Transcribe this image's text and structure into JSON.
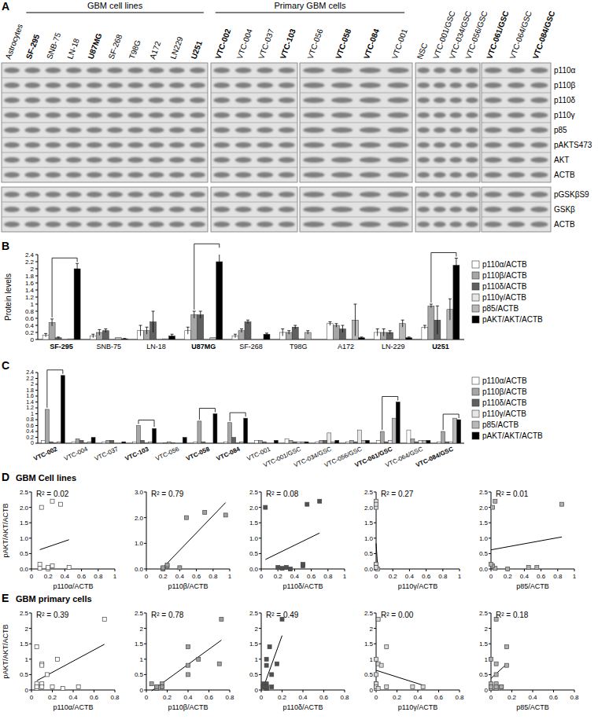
{
  "panels": [
    {
      "label": "A"
    },
    {
      "label": "B"
    },
    {
      "label": "C"
    },
    {
      "label": "D",
      "title": "GBM Cell lines"
    },
    {
      "label": "E",
      "title": "GBM primary cells"
    }
  ],
  "panel_a": {
    "headers": [
      {
        "text": "GBM cell lines",
        "from": [
          0,
          1
        ],
        "to": [
          0,
          9
        ]
      },
      {
        "text": "Primary GBM cells",
        "from": [
          1,
          0
        ],
        "to": [
          2,
          3
        ]
      }
    ],
    "blocks": [
      {
        "lanes": [
          {
            "label": "Astrocytes",
            "bold": false
          },
          {
            "label": "SF-295",
            "bold": true
          },
          {
            "label": "SNB-75",
            "bold": false
          },
          {
            "label": "LN-18",
            "bold": false
          },
          {
            "label": "U87MG",
            "bold": true
          },
          {
            "label": "SF-268",
            "bold": false
          },
          {
            "label": "T98G",
            "bold": false
          },
          {
            "label": "A172",
            "bold": false
          },
          {
            "label": "LN229",
            "bold": false
          },
          {
            "label": "U251",
            "bold": true
          }
        ]
      },
      {
        "lanes": [
          {
            "label": "VTC-002",
            "bold": true
          },
          {
            "label": "VTC-004",
            "bold": false
          },
          {
            "label": "VTC-037",
            "bold": false
          },
          {
            "label": "VTC-103",
            "bold": true
          }
        ]
      },
      {
        "lanes": [
          {
            "label": "VTC-056",
            "bold": false
          },
          {
            "label": "VTC-058",
            "bold": true
          },
          {
            "label": "VTC-084",
            "bold": true
          },
          {
            "label": "VTC-001",
            "bold": false
          }
        ]
      },
      {
        "lanes": [
          {
            "label": "NSC",
            "bold": false
          },
          {
            "label": "VTC-001/GSC",
            "bold": false
          },
          {
            "label": "VTC-034/GSC",
            "bold": false
          },
          {
            "label": "VTC-056/GSC",
            "bold": false
          }
        ]
      },
      {
        "lanes": [
          {
            "label": "VTC-061/GSC",
            "bold": true
          },
          {
            "label": "VTC-064/GSC",
            "bold": false
          },
          {
            "label": "VTC-084/GSC",
            "bold": true
          }
        ]
      }
    ],
    "rows_top": [
      "p110α",
      "p110β",
      "p110δ",
      "p110γ",
      "p85",
      "pAKTS473",
      "AKT",
      "ACTB"
    ],
    "rows_bottom": [
      "pGSKβS9",
      "GSKβ",
      "ACTB"
    ]
  },
  "chart_data": [
    {
      "type": "bar",
      "y_label": "Protein levels",
      "categories": [
        "SF-295",
        "SNB-75",
        "LN-18",
        "U87MG",
        "SF-268",
        "T98G",
        "A172",
        "LN-229",
        "U251"
      ],
      "ylim": [
        0,
        2.4
      ],
      "yticks": [
        0,
        0.2,
        0.4,
        0.6,
        0.8,
        1,
        1.2,
        1.4,
        1.6,
        1.8,
        2,
        2.2,
        2.4
      ],
      "grid": false,
      "legend": "right",
      "series": [
        {
          "name": "p110α/ACTB",
          "color": "#ffffff",
          "values": [
            0.12,
            0.1,
            0.25,
            0.25,
            0.1,
            0.2,
            0.45,
            0.2,
            0.35
          ],
          "errors": [
            0.05,
            0.05,
            0.15,
            0.1,
            0.05,
            0.1,
            0.05,
            0.1,
            0.05
          ]
        },
        {
          "name": "p110β/ACTB",
          "color": "#a6a6a6",
          "values": [
            0.48,
            0.2,
            0.25,
            0.7,
            0.25,
            0.2,
            0.4,
            0.2,
            0.95
          ],
          "errors": [
            0.1,
            0.08,
            0.1,
            0.1,
            0.05,
            0.05,
            0.05,
            0.1,
            0.05
          ]
        },
        {
          "name": "p110δ/ACTB",
          "color": "#606060",
          "values": [
            0.05,
            0.25,
            0.5,
            0.7,
            0.5,
            0.35,
            0.3,
            0.2,
            0.55
          ],
          "errors": [
            0.02,
            0.05,
            0.3,
            0.1,
            0.05,
            0.05,
            0.1,
            0.05,
            0.4
          ]
        },
        {
          "name": "p110γ/ACTB",
          "color": "#e6e6e6",
          "values": [
            0,
            0,
            0,
            0,
            0,
            0.02,
            0,
            0,
            0
          ],
          "errors": [
            0,
            0,
            0,
            0,
            0,
            0,
            0,
            0,
            0
          ]
        },
        {
          "name": "p85/ACTB",
          "color": "#b8b8b8",
          "values": [
            0.02,
            0.05,
            0.02,
            0.05,
            0,
            0.2,
            0.55,
            0.45,
            0.85
          ],
          "errors": [
            0,
            0,
            0,
            0,
            0,
            0.05,
            0.45,
            0.1,
            0.3
          ]
        },
        {
          "name": "pAKT/AKT/ACTB",
          "color": "#000000",
          "values": [
            2.0,
            0.02,
            0.1,
            2.2,
            0.15,
            0.0,
            0.05,
            0.05,
            2.1
          ],
          "errors": [
            0.15,
            0.01,
            0.05,
            0.35,
            0.03,
            0,
            0.02,
            0.02,
            0.2
          ]
        }
      ],
      "annotations": [
        {
          "shape": "bracket",
          "category": 0,
          "from": 1,
          "to": 5
        },
        {
          "shape": "bracket",
          "category": 3,
          "from": 1,
          "to": 5
        },
        {
          "shape": "bracket",
          "category": 8,
          "from": 1,
          "to": 5
        }
      ]
    },
    {
      "type": "bar",
      "categories": [
        "VTC-002",
        "VTC-004",
        "VTC-037",
        "VTC-103",
        "VTC-056",
        "VTC-058",
        "VTC-084",
        "VTC-001",
        "VTC-001/GSC",
        "VTC-034/GSC",
        "VTC-056/GSC",
        "VTC-061/GSC",
        "VTC-064/GSC",
        "VTC-084/GSC"
      ],
      "ylim": [
        0,
        2.4
      ],
      "yticks": [
        0,
        0.2,
        0.4,
        0.6,
        0.8,
        1,
        1.2,
        1.4,
        1.6,
        1.8,
        2,
        2.2,
        2.4
      ],
      "grid": false,
      "legend": "right",
      "series": [
        {
          "name": "p110α/ACTB",
          "color": "#ffffff",
          "values": [
            0.1,
            0.05,
            0.05,
            0.05,
            0.02,
            0.05,
            0.05,
            0.1,
            0.15,
            0.05,
            0.05,
            0.1,
            0.45,
            0.05
          ]
        },
        {
          "name": "p110β/ACTB",
          "color": "#a6a6a6",
          "values": [
            1.15,
            0.15,
            0.1,
            0.6,
            0.05,
            0.75,
            0.7,
            0.1,
            0.1,
            0.1,
            0.1,
            0.4,
            0.15,
            0.4
          ]
        },
        {
          "name": "p110δ/ACTB",
          "color": "#606060",
          "values": [
            0.05,
            0.1,
            0.1,
            0.1,
            0.02,
            0.05,
            0.2,
            0.05,
            0.05,
            0.1,
            0.05,
            0.05,
            0.05,
            0.05
          ]
        },
        {
          "name": "p110γ/ACTB",
          "color": "#e6e6e6",
          "values": [
            0.02,
            0.02,
            0,
            0.02,
            0,
            0,
            0.02,
            0,
            0.05,
            0.35,
            0.45,
            0.1,
            0.1,
            0.05
          ]
        },
        {
          "name": "p85/ACTB",
          "color": "#b8b8b8",
          "values": [
            0.05,
            0.05,
            0,
            0.05,
            0,
            0,
            0.05,
            0,
            0.05,
            0.05,
            0.1,
            0.85,
            0.1,
            0.85
          ]
        },
        {
          "name": "pAKT/AKT/ACTB",
          "color": "#000000",
          "values": [
            2.3,
            0.2,
            0.05,
            0.5,
            0.2,
            1.0,
            0.85,
            0.1,
            0.05,
            0.1,
            0.1,
            1.4,
            0.1,
            0.8
          ]
        }
      ],
      "annotations": [
        {
          "shape": "bracket",
          "category": 0,
          "from": 1,
          "to": 5
        },
        {
          "shape": "bracket",
          "category": 3,
          "from": 1,
          "to": 5
        },
        {
          "shape": "bracket",
          "category": 5,
          "from": 1,
          "to": 5
        },
        {
          "shape": "bracket",
          "category": 6,
          "from": 1,
          "to": 5
        },
        {
          "shape": "bracket",
          "category": 11,
          "from": 1,
          "to": 5
        },
        {
          "shape": "bracket",
          "category": 13,
          "from": 1,
          "to": 5
        }
      ]
    },
    {
      "type": "scatter",
      "y_label": "pAKT/AKT/ACTB",
      "x_label": "p110α/ACTB",
      "annotations": [
        "R² = 0.02"
      ],
      "color": "#ffffff",
      "marker": "square",
      "x": [
        0.12,
        0.1,
        0.25,
        0.25,
        0.1,
        0.2,
        0.45,
        0.2,
        0.35
      ],
      "values": [
        2.0,
        0.02,
        0.1,
        2.2,
        0.15,
        0.0,
        0.05,
        0.05,
        2.1
      ],
      "xlim": [
        0,
        1
      ],
      "xticks": [
        0,
        0.2,
        0.4,
        0.6,
        0.8,
        1
      ],
      "ylim": [
        0,
        2.5
      ],
      "yticks": [
        {
          "value": 0,
          "label": "0.0"
        },
        0.5,
        {
          "value": 1,
          "label": "1.0"
        },
        1.5,
        {
          "value": 2,
          "label": "2.0"
        },
        2.5
      ]
    },
    {
      "type": "scatter",
      "x_label": "p110β/ACTB",
      "annotations": [
        "R² = 0.79"
      ],
      "color": "#a0a0a0",
      "marker": "square",
      "x": [
        0.48,
        0.2,
        0.25,
        0.7,
        0.25,
        0.2,
        0.4,
        0.2,
        0.95
      ],
      "values": [
        2.0,
        0.02,
        0.1,
        2.2,
        0.15,
        0.0,
        0.05,
        0.05,
        2.1
      ],
      "xlim": [
        0,
        1
      ],
      "xticks": [
        0,
        0.2,
        0.4,
        0.6,
        0.8,
        1
      ],
      "ylim": [
        0,
        3
      ],
      "yticks": [
        {
          "value": 0,
          "label": "0.0"
        },
        {
          "value": 1,
          "label": "1.0"
        },
        {
          "value": 2,
          "label": "2.0"
        },
        {
          "value": 3,
          "label": "3.0"
        }
      ]
    },
    {
      "type": "scatter",
      "x_label": "p110δ/ACTB",
      "annotations": [
        "R² = 0.08"
      ],
      "color": "#505050",
      "marker": "square",
      "x": [
        0.05,
        0.25,
        0.5,
        0.7,
        0.5,
        0.35,
        0.3,
        0.2,
        0.55
      ],
      "values": [
        2.0,
        0.02,
        0.1,
        2.2,
        0.15,
        0.0,
        0.05,
        0.05,
        2.1
      ],
      "xlim": [
        0,
        1
      ],
      "xticks": [
        0,
        0.2,
        0.4,
        0.6,
        0.8,
        1
      ],
      "ylim": [
        0,
        2.5
      ],
      "yticks": [
        {
          "value": 0,
          "label": "0.0"
        },
        0.5,
        {
          "value": 1,
          "label": "1.0"
        },
        1.5,
        {
          "value": 2,
          "label": "2.0"
        },
        2.5
      ]
    },
    {
      "type": "scatter",
      "x_label": "p110γ/ACTB",
      "annotations": [
        "R² = 0.27"
      ],
      "color": "#d8d8d8",
      "marker": "square",
      "x": [
        0,
        0,
        0,
        0,
        0,
        0.02,
        0,
        0,
        0
      ],
      "values": [
        2.0,
        0.02,
        0.1,
        2.2,
        0.15,
        0.0,
        0.05,
        0.05,
        2.1
      ],
      "xlim": [
        0,
        1
      ],
      "xticks": [
        0,
        0.2,
        0.4,
        0.6,
        0.8,
        1
      ],
      "ylim": [
        0,
        2.5
      ],
      "yticks": [
        {
          "value": 0,
          "label": "0.0"
        },
        0.5,
        {
          "value": 1,
          "label": "1.0"
        },
        1.5,
        {
          "value": 2,
          "label": "2.0"
        },
        2.5
      ]
    },
    {
      "type": "scatter",
      "x_label": "p85/ACTB",
      "annotations": [
        "R² = 0.01"
      ],
      "color": "#b0b0b0",
      "marker": "square",
      "x": [
        0.02,
        0.05,
        0.02,
        0.05,
        0,
        0.2,
        0.55,
        0.45,
        0.85
      ],
      "values": [
        2.0,
        0.02,
        0.1,
        2.2,
        0.15,
        0.0,
        0.05,
        0.05,
        2.1
      ],
      "xlim": [
        0,
        1
      ],
      "xticks": [
        0,
        0.2,
        0.4,
        0.6,
        0.8,
        1
      ],
      "ylim": [
        0,
        2.5
      ],
      "yticks": [
        {
          "value": 0,
          "label": "0.0"
        },
        0.5,
        {
          "value": 1,
          "label": "1.0"
        },
        1.5,
        {
          "value": 2,
          "label": "2.0"
        },
        2.5
      ]
    },
    {
      "type": "scatter",
      "y_label": "pAKT/AKT/ACTB",
      "x_label": "p110α/ACTB",
      "annotations": [
        "R² = 0.39"
      ],
      "color": "#ffffff",
      "marker": "square",
      "x": [
        0.7,
        0.1,
        0.05,
        0.15,
        0.05,
        0.25,
        0.1,
        0.2,
        0.3,
        0.1,
        0.05,
        0.05,
        0.45,
        0.1
      ],
      "values": [
        2.3,
        0.2,
        0.05,
        0.5,
        0.2,
        1.0,
        0.85,
        0.1,
        0.05,
        0.1,
        0.1,
        1.4,
        0.1,
        0.8
      ],
      "xlim": [
        0,
        0.8
      ],
      "xticks": [
        0,
        0.2,
        0.4,
        0.6,
        0.8
      ],
      "ylim": [
        0,
        2.5
      ],
      "yticks": [
        0,
        0.5,
        1,
        1.5,
        2,
        2.5
      ]
    },
    {
      "type": "scatter",
      "x_label": "p110β/ACTB",
      "annotations": [
        "R² = 0.78"
      ],
      "color": "#a0a0a0",
      "marker": "square",
      "x": [
        0.72,
        0.15,
        0.1,
        0.4,
        0.05,
        0.5,
        0.7,
        0.1,
        0.1,
        0.1,
        0.15,
        0.4,
        0.15,
        0.4
      ],
      "values": [
        2.3,
        0.2,
        0.05,
        0.5,
        0.2,
        1.0,
        0.85,
        0.1,
        0.05,
        0.1,
        0.1,
        1.4,
        0.1,
        0.8
      ],
      "xlim": [
        0,
        0.8
      ],
      "xticks": [
        0,
        0.2,
        0.4,
        0.6,
        0.8
      ],
      "ylim": [
        0,
        2.5
      ],
      "yticks": [
        0,
        0.5,
        1,
        1.5,
        2,
        2.5
      ]
    },
    {
      "type": "scatter",
      "x_label": "p110δ/ACTB",
      "annotations": [
        "R² = 0.49"
      ],
      "color": "#505050",
      "marker": "square",
      "x": [
        0.2,
        0.05,
        0.05,
        0.1,
        0.02,
        0.05,
        0.15,
        0.02,
        0.05,
        0.1,
        0.05,
        0.08,
        0.02,
        0.05
      ],
      "values": [
        2.3,
        0.2,
        0.05,
        0.5,
        0.2,
        1.0,
        0.85,
        0.1,
        0.05,
        0.1,
        0.1,
        1.4,
        0.1,
        0.8
      ],
      "xlim": [
        0,
        0.8
      ],
      "xticks": [
        0,
        0.2,
        0.4,
        0.6,
        0.8
      ],
      "ylim": [
        0,
        2.5
      ],
      "yticks": [
        0,
        0.5,
        1,
        1.5,
        2,
        2.5
      ]
    },
    {
      "type": "scatter",
      "x_label": "p110γ/ACTB",
      "annotations": [
        "R² = 0.00"
      ],
      "color": "#d8d8d8",
      "marker": "square",
      "x": [
        0.02,
        0,
        0,
        0,
        0,
        0,
        0.02,
        0,
        0.02,
        0.35,
        0.45,
        0.1,
        0.1,
        0.05
      ],
      "values": [
        2.3,
        0.2,
        0.05,
        0.5,
        0.2,
        1.0,
        0.85,
        0.1,
        0.05,
        0.1,
        0.1,
        1.4,
        0.1,
        0.8
      ],
      "xlim": [
        0,
        0.8
      ],
      "xticks": [
        0,
        0.2,
        0.4,
        0.6,
        0.8
      ],
      "ylim": [
        0,
        2.5
      ],
      "yticks": [
        0,
        0.5,
        1,
        1.5,
        2,
        2.5
      ]
    },
    {
      "type": "scatter",
      "x_label": "p85/ACTB",
      "annotations": [
        "R² = 0.18"
      ],
      "color": "#b0b0b0",
      "marker": "square",
      "x": [
        0.05,
        0.05,
        0,
        0.05,
        0,
        0,
        0.05,
        0,
        0.05,
        0.05,
        0.1,
        0.15,
        0.1,
        0.15
      ],
      "values": [
        2.3,
        0.2,
        0.05,
        0.5,
        0.2,
        1.0,
        0.85,
        0.1,
        0.05,
        0.1,
        0.1,
        1.4,
        0.1,
        0.8
      ],
      "xlim": [
        0,
        0.8
      ],
      "xticks": [
        0,
        0.2,
        0.4,
        0.6,
        0.8
      ],
      "ylim": [
        0,
        2.5
      ],
      "yticks": [
        0,
        0.5,
        1,
        1.5,
        2,
        2.5
      ]
    }
  ]
}
